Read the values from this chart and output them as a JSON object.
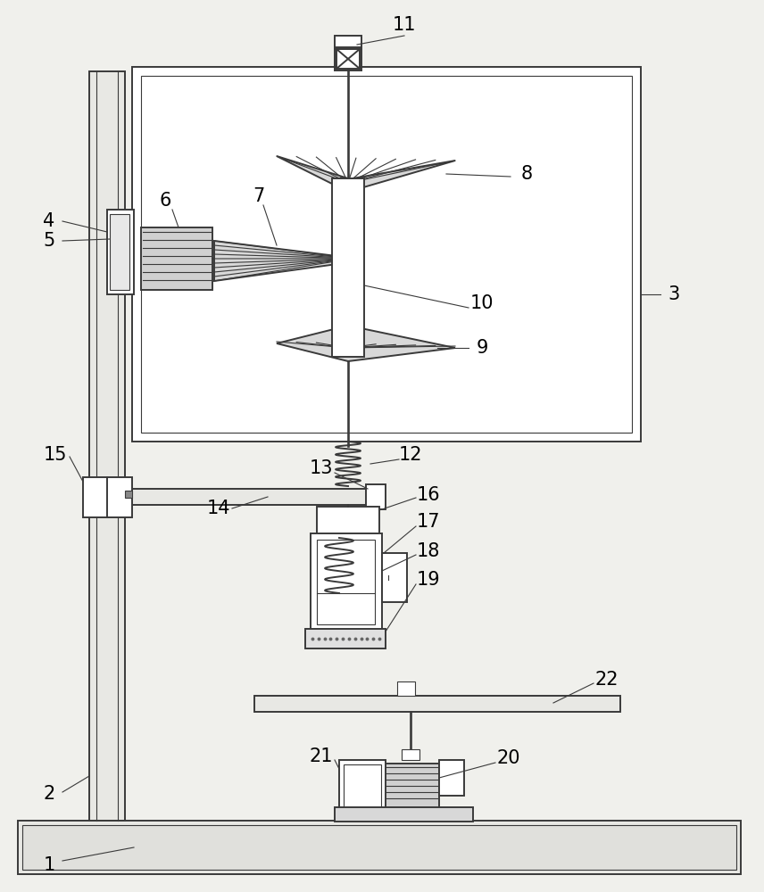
{
  "bg_color": "#f0f0ec",
  "line_color": "#3a3a3a",
  "lw": 1.4,
  "tlw": 0.8,
  "fig_w": 8.56,
  "fig_h": 10.0
}
